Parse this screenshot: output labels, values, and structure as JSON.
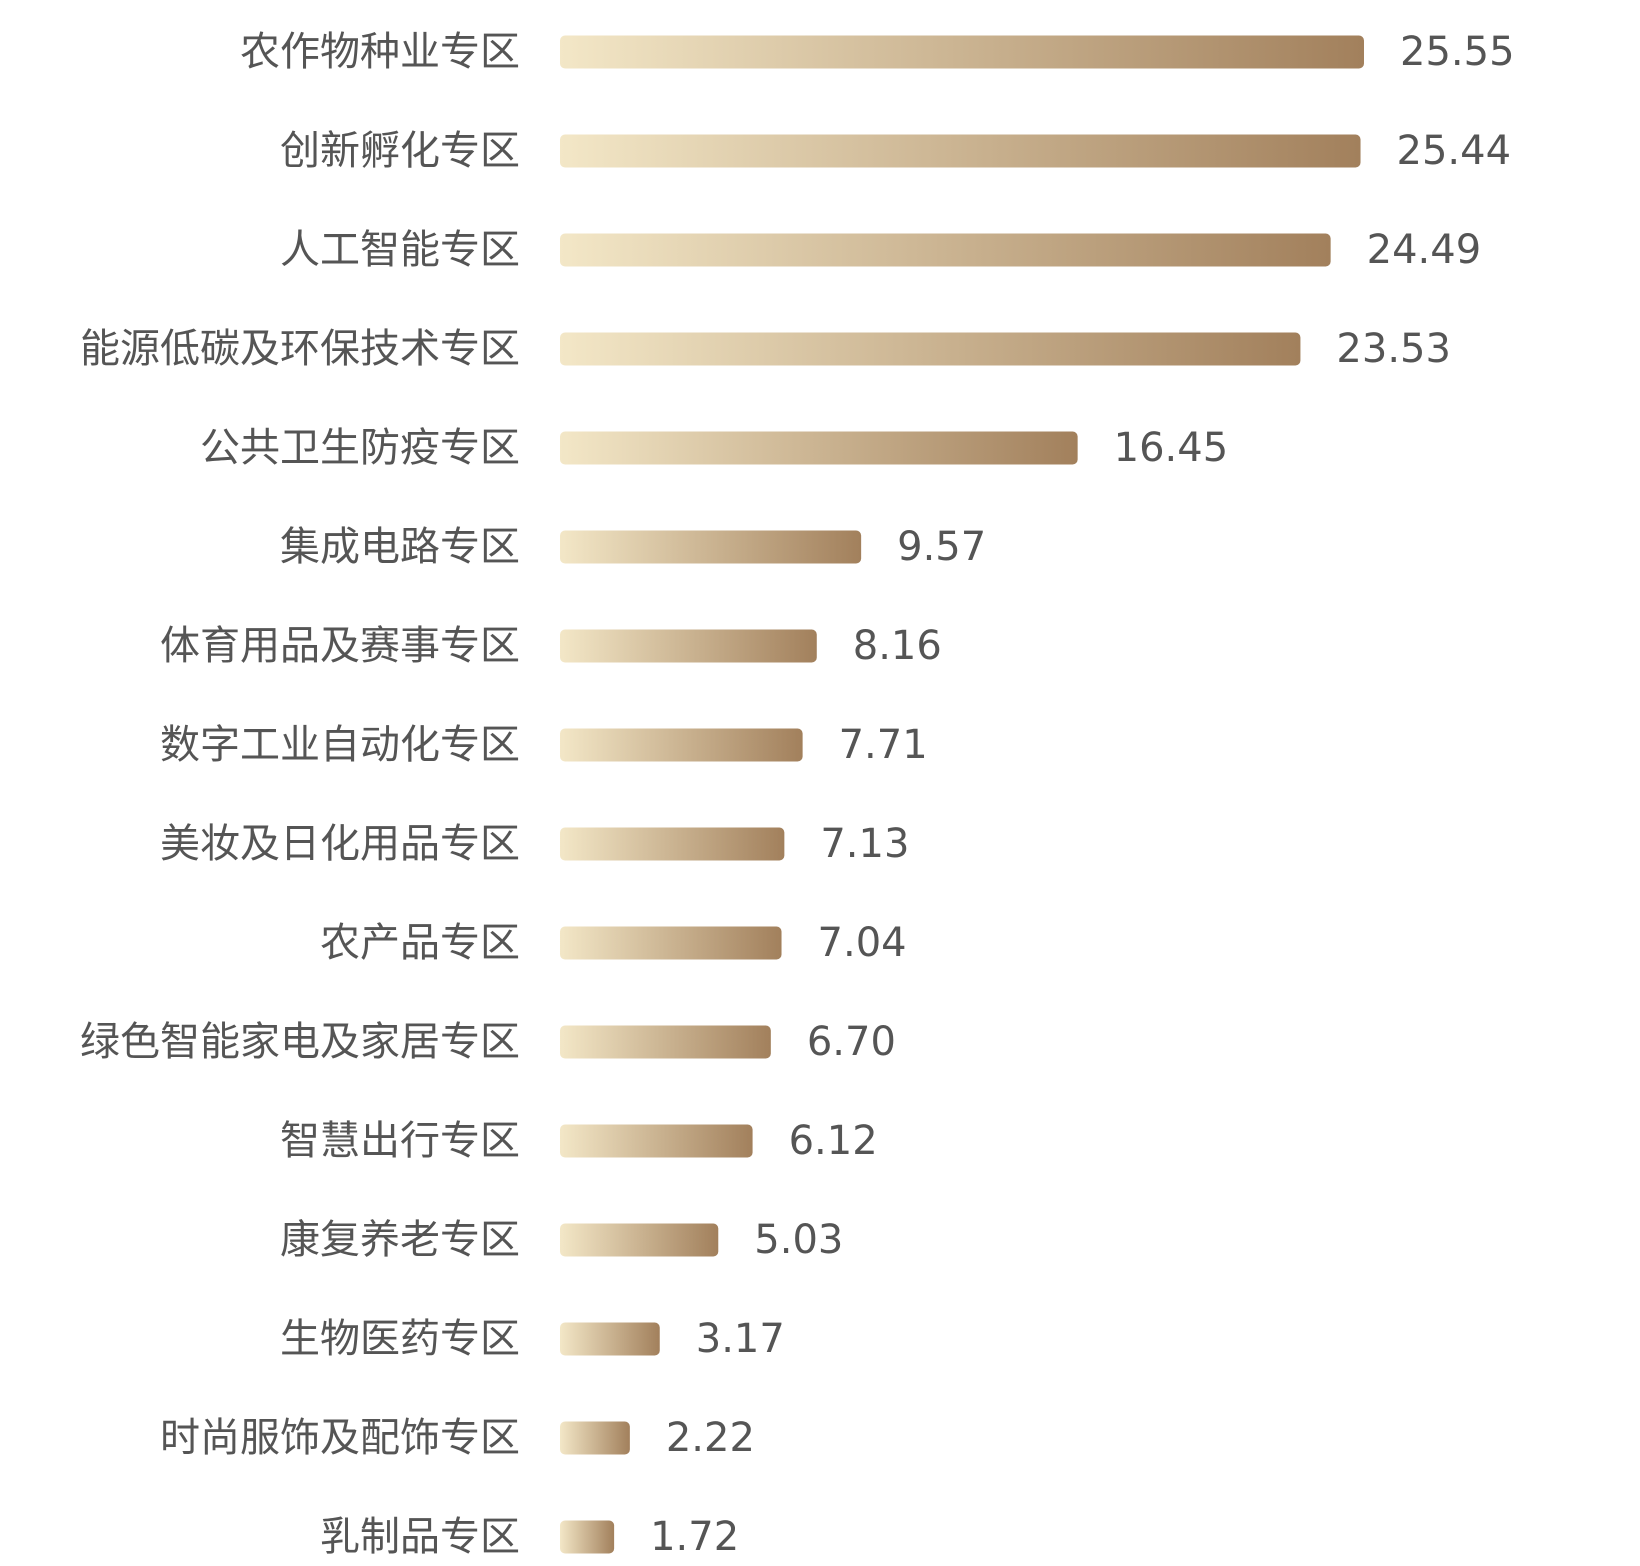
{
  "chart_data": {
    "type": "bar",
    "orientation": "horizontal",
    "title": "",
    "xlabel": "",
    "ylabel": "",
    "categories": [
      "农作物种业专区",
      "创新孵化专区",
      "人工智能专区",
      "能源低碳及环保技术专区",
      "公共卫生防疫专区",
      "集成电路专区",
      "体育用品及赛事专区",
      "数字工业自动化专区",
      "美妆及日化用品专区",
      "农产品专区",
      "绿色智能家电及家居专区",
      "智慧出行专区",
      "康复养老专区",
      "生物医药专区",
      "时尚服饰及配饰专区",
      "乳制品专区"
    ],
    "values": [
      25.55,
      25.44,
      24.49,
      23.53,
      16.45,
      9.57,
      8.16,
      7.71,
      7.13,
      7.04,
      6.7,
      6.12,
      5.03,
      3.17,
      2.22,
      1.72
    ],
    "value_labels": [
      "25.55",
      "25.44",
      "24.49",
      "23.53",
      "16.45",
      "9.57",
      "8.16",
      "7.71",
      "7.13",
      "7.04",
      "6.70",
      "6.12",
      "5.03",
      "3.17",
      "2.22",
      "1.72"
    ],
    "xlim": [
      0,
      25.55
    ],
    "grid": false,
    "legend": "none",
    "colors": {
      "bar_start": "#F3E7C7",
      "bar_end": "#A2805C",
      "text": "#555555"
    }
  }
}
